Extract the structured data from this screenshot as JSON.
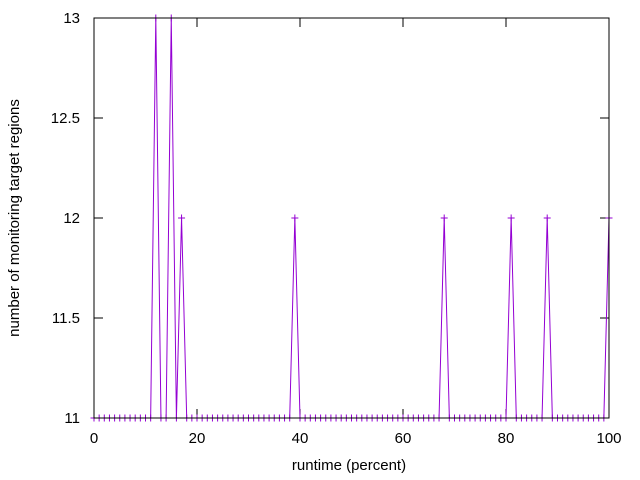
{
  "chart_data": {
    "type": "line",
    "title": "",
    "xlabel": "runtime (percent)",
    "ylabel": "number of monitoring target regions",
    "xlim": [
      0,
      100
    ],
    "ylim": [
      11,
      13
    ],
    "x_ticks": [
      0,
      20,
      40,
      60,
      80,
      100
    ],
    "y_ticks": [
      11,
      11.5,
      12,
      12.5,
      13
    ],
    "x_tick_labels": [
      "0",
      "20",
      "40",
      "60",
      "80",
      "100"
    ],
    "y_tick_labels": [
      "11",
      "11.5",
      "12",
      "12.5",
      "13"
    ],
    "grid": false,
    "legend": "none",
    "marker": "plus",
    "series_color": "#9400d3",
    "series": [
      {
        "x": [
          0,
          1,
          2,
          3,
          4,
          5,
          6,
          7,
          8,
          9,
          10,
          11,
          12,
          13,
          14,
          15,
          16,
          17,
          18,
          19,
          20,
          21,
          22,
          23,
          24,
          25,
          26,
          27,
          28,
          29,
          30,
          31,
          32,
          33,
          34,
          35,
          36,
          37,
          38,
          39,
          40,
          41,
          42,
          43,
          44,
          45,
          46,
          47,
          48,
          49,
          50,
          51,
          52,
          53,
          54,
          55,
          56,
          57,
          58,
          59,
          60,
          61,
          62,
          63,
          64,
          65,
          66,
          67,
          68,
          69,
          70,
          71,
          72,
          73,
          74,
          75,
          76,
          77,
          78,
          79,
          80,
          81,
          82,
          83,
          84,
          85,
          86,
          87,
          88,
          89,
          90,
          91,
          92,
          93,
          94,
          95,
          96,
          97,
          98,
          99,
          100
        ],
        "values": [
          11,
          11,
          11,
          11,
          11,
          11,
          11,
          11,
          11,
          11,
          11,
          11,
          13,
          11,
          11,
          13,
          11,
          12,
          11,
          11,
          11,
          11,
          11,
          11,
          11,
          11,
          11,
          11,
          11,
          11,
          11,
          11,
          11,
          11,
          11,
          11,
          11,
          11,
          11,
          12,
          11,
          11,
          11,
          11,
          11,
          11,
          11,
          11,
          11,
          11,
          11,
          11,
          11,
          11,
          11,
          11,
          11,
          11,
          11,
          11,
          11,
          11,
          11,
          11,
          11,
          11,
          11,
          11,
          12,
          11,
          11,
          11,
          11,
          11,
          11,
          11,
          11,
          11,
          11,
          11,
          11,
          12,
          11,
          11,
          11,
          11,
          11,
          11,
          12,
          11,
          11,
          11,
          11,
          11,
          11,
          11,
          11,
          11,
          11,
          11,
          12
        ]
      }
    ]
  }
}
